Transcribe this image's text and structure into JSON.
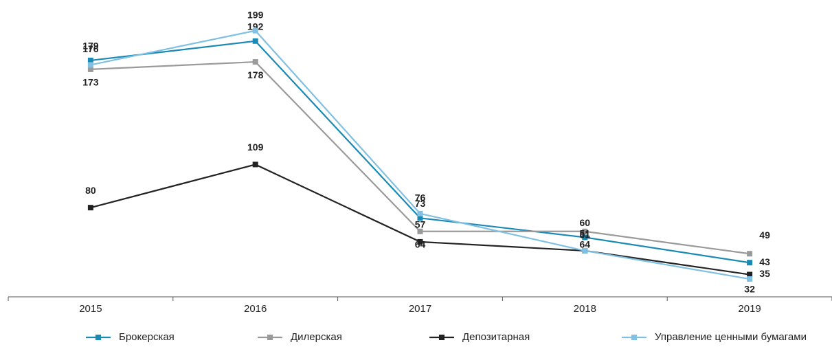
{
  "chart_data": {
    "type": "line",
    "categories": [
      "2015",
      "2016",
      "2017",
      "2018",
      "2019"
    ],
    "series": [
      {
        "name": "Брокерская",
        "color": "#1a8ab5",
        "values": [
          179,
          192,
          73,
          60,
          43
        ]
      },
      {
        "name": "Дилерская",
        "color": "#9a9a9a",
        "values": [
          173,
          178,
          64,
          64,
          49
        ]
      },
      {
        "name": "Депозитарная",
        "color": "#222222",
        "values": [
          80,
          109,
          57,
          51,
          35
        ]
      },
      {
        "name": "Управление ценными бумагами",
        "color": "#80c0e2",
        "values": [
          176,
          199,
          76,
          51,
          32
        ]
      }
    ],
    "ylim": [
      20,
      215
    ]
  }
}
